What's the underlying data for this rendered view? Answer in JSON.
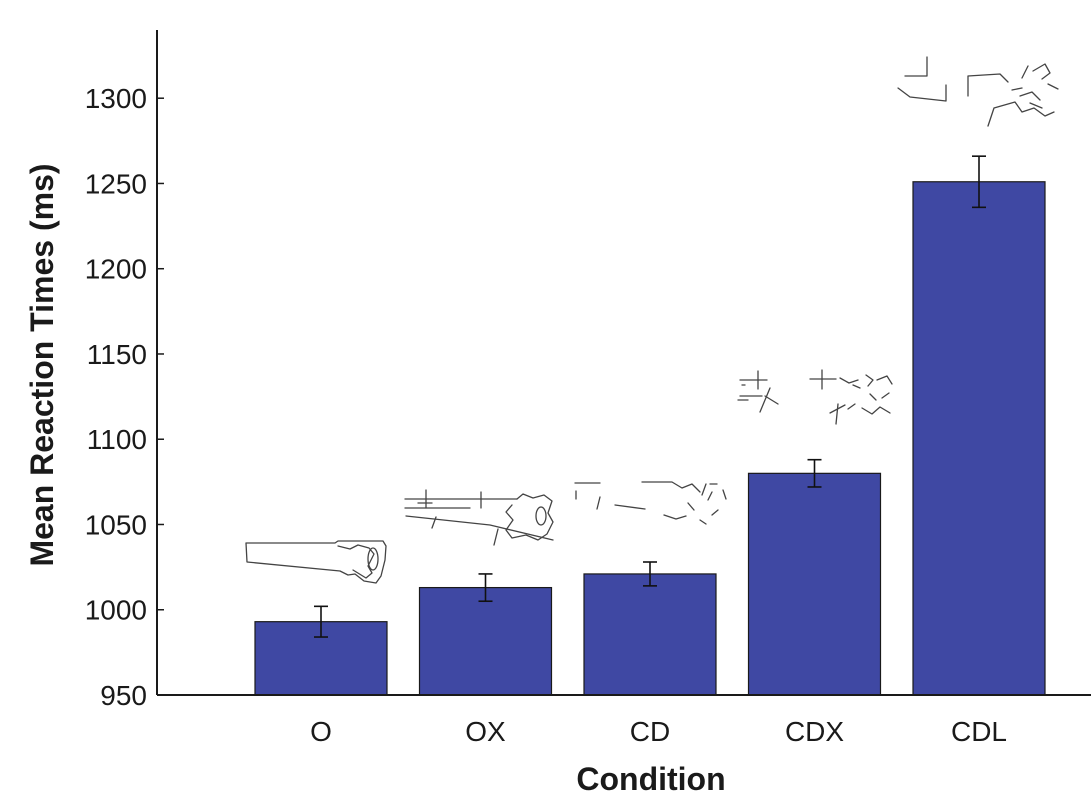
{
  "colors": {
    "bar": "#3f48a3",
    "axis": "#1a1a1a"
  },
  "chart_data": {
    "type": "bar",
    "xlabel": "Condition",
    "ylabel": "Mean Reaction Times (ms)",
    "categories": [
      "O",
      "OX",
      "CD",
      "CDX",
      "CDL"
    ],
    "values": [
      993,
      1013,
      1021,
      1080,
      1251
    ],
    "error": [
      9,
      8,
      7,
      8,
      15
    ],
    "ylim": [
      950,
      1340
    ],
    "yticks": [
      950,
      1000,
      1050,
      1100,
      1150,
      1200,
      1250,
      1300
    ],
    "grid": false,
    "legend": "none",
    "example_images": [
      "saw-line-drawing",
      "saw-line-drawing-crossed",
      "saw-contour-deleted",
      "saw-contour-deleted-crossed",
      "saw-contour-deleted-lines"
    ]
  }
}
